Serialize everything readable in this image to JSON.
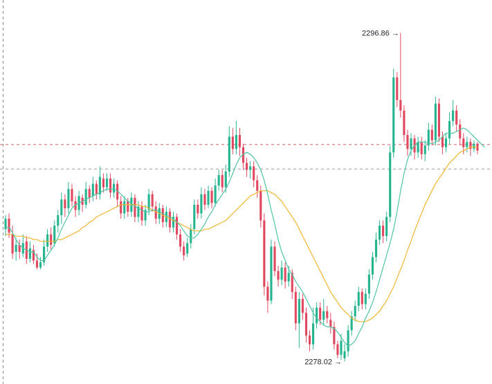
{
  "chart_data": {
    "type": "candlestick",
    "ylim": [
      2277.0,
      2298.5
    ],
    "colors": {
      "up": "#26b48f",
      "down": "#e0485f",
      "ma_fast": "#4fc4a3",
      "ma_slow": "#f2b630",
      "dashed_line": "#d05a6e",
      "dashed_line_gray": "#9a9a9a",
      "axis_dashed": "#8a8a8a"
    },
    "annotations": {
      "high": {
        "text": "2296.86 →",
        "value": 2296.86
      },
      "low": {
        "text": "2278.02 →",
        "value": 2278.02
      }
    },
    "horizontal_lines": [
      {
        "value": 2290.45,
        "color": "dashed_line"
      },
      {
        "value": 2289.05,
        "color": "dashed_line_gray"
      }
    ],
    "candles": [
      {
        "o": 2285.6,
        "c": 2286.2,
        "h": 2286.4,
        "l": 2285.2
      },
      {
        "o": 2286.2,
        "c": 2285.4,
        "h": 2286.5,
        "l": 2285.1
      },
      {
        "o": 2285.3,
        "c": 2284.2,
        "h": 2285.8,
        "l": 2283.9
      },
      {
        "o": 2284.3,
        "c": 2284.7,
        "h": 2285.1,
        "l": 2283.8
      },
      {
        "o": 2284.7,
        "c": 2284.3,
        "h": 2285.0,
        "l": 2283.9
      },
      {
        "o": 2284.2,
        "c": 2284.8,
        "h": 2285.3,
        "l": 2284.0
      },
      {
        "o": 2284.9,
        "c": 2283.9,
        "h": 2285.2,
        "l": 2283.6
      },
      {
        "o": 2283.9,
        "c": 2284.5,
        "h": 2284.9,
        "l": 2283.7
      },
      {
        "o": 2284.4,
        "c": 2283.8,
        "h": 2284.7,
        "l": 2283.6
      },
      {
        "o": 2283.8,
        "c": 2283.4,
        "h": 2284.2,
        "l": 2283.3
      },
      {
        "o": 2283.4,
        "c": 2283.7,
        "h": 2284.0,
        "l": 2283.3
      },
      {
        "o": 2283.7,
        "c": 2284.6,
        "h": 2285.0,
        "l": 2283.5
      },
      {
        "o": 2284.6,
        "c": 2285.3,
        "h": 2285.6,
        "l": 2284.3
      },
      {
        "o": 2285.3,
        "c": 2284.7,
        "h": 2285.7,
        "l": 2284.4
      },
      {
        "o": 2284.8,
        "c": 2285.8,
        "h": 2286.1,
        "l": 2284.6
      },
      {
        "o": 2285.8,
        "c": 2286.4,
        "h": 2286.7,
        "l": 2285.4
      },
      {
        "o": 2286.4,
        "c": 2287.3,
        "h": 2287.7,
        "l": 2285.9
      },
      {
        "o": 2287.3,
        "c": 2286.8,
        "h": 2287.6,
        "l": 2286.3
      },
      {
        "o": 2286.8,
        "c": 2287.9,
        "h": 2288.3,
        "l": 2286.5
      },
      {
        "o": 2287.9,
        "c": 2287.2,
        "h": 2288.2,
        "l": 2286.9
      },
      {
        "o": 2287.2,
        "c": 2286.7,
        "h": 2287.5,
        "l": 2286.3
      },
      {
        "o": 2286.7,
        "c": 2287.5,
        "h": 2287.8,
        "l": 2286.4
      },
      {
        "o": 2287.4,
        "c": 2287.0,
        "h": 2287.6,
        "l": 2286.6
      },
      {
        "o": 2287.0,
        "c": 2287.9,
        "h": 2288.3,
        "l": 2286.8
      },
      {
        "o": 2287.9,
        "c": 2287.4,
        "h": 2288.1,
        "l": 2287.1
      },
      {
        "o": 2287.5,
        "c": 2288.2,
        "h": 2288.6,
        "l": 2287.2
      },
      {
        "o": 2288.2,
        "c": 2287.6,
        "h": 2288.4,
        "l": 2287.3
      },
      {
        "o": 2287.6,
        "c": 2288.6,
        "h": 2289.2,
        "l": 2287.3
      },
      {
        "o": 2288.5,
        "c": 2288.0,
        "h": 2288.8,
        "l": 2287.7
      },
      {
        "o": 2288.0,
        "c": 2288.5,
        "h": 2288.8,
        "l": 2287.8
      },
      {
        "o": 2288.5,
        "c": 2287.7,
        "h": 2288.8,
        "l": 2287.4
      },
      {
        "o": 2287.7,
        "c": 2288.2,
        "h": 2288.5,
        "l": 2287.4
      },
      {
        "o": 2288.2,
        "c": 2287.3,
        "h": 2288.4,
        "l": 2286.9
      },
      {
        "o": 2287.2,
        "c": 2286.5,
        "h": 2287.5,
        "l": 2286.2
      },
      {
        "o": 2286.5,
        "c": 2287.2,
        "h": 2287.5,
        "l": 2286.2
      },
      {
        "o": 2287.2,
        "c": 2286.6,
        "h": 2287.4,
        "l": 2286.3
      },
      {
        "o": 2286.6,
        "c": 2287.4,
        "h": 2287.7,
        "l": 2286.3
      },
      {
        "o": 2287.4,
        "c": 2286.3,
        "h": 2287.6,
        "l": 2286.0
      },
      {
        "o": 2286.3,
        "c": 2286.9,
        "h": 2287.2,
        "l": 2286.0
      },
      {
        "o": 2286.9,
        "c": 2286.1,
        "h": 2287.2,
        "l": 2285.8
      },
      {
        "o": 2286.1,
        "c": 2286.7,
        "h": 2287.0,
        "l": 2285.8
      },
      {
        "o": 2286.7,
        "c": 2287.6,
        "h": 2287.9,
        "l": 2286.4
      },
      {
        "o": 2287.6,
        "c": 2286.9,
        "h": 2287.8,
        "l": 2286.6
      },
      {
        "o": 2286.9,
        "c": 2286.2,
        "h": 2287.2,
        "l": 2285.9
      },
      {
        "o": 2286.2,
        "c": 2286.8,
        "h": 2287.1,
        "l": 2285.9
      },
      {
        "o": 2286.8,
        "c": 2286.0,
        "h": 2287.0,
        "l": 2285.7
      },
      {
        "o": 2286.0,
        "c": 2286.6,
        "h": 2286.9,
        "l": 2285.7
      },
      {
        "o": 2286.6,
        "c": 2285.7,
        "h": 2286.8,
        "l": 2285.4
      },
      {
        "o": 2285.7,
        "c": 2286.3,
        "h": 2286.6,
        "l": 2285.4
      },
      {
        "o": 2286.3,
        "c": 2285.3,
        "h": 2286.5,
        "l": 2285.0
      },
      {
        "o": 2285.3,
        "c": 2284.6,
        "h": 2285.6,
        "l": 2284.3
      },
      {
        "o": 2284.6,
        "c": 2284.1,
        "h": 2284.9,
        "l": 2283.8
      },
      {
        "o": 2284.2,
        "c": 2284.8,
        "h": 2285.1,
        "l": 2284.0
      },
      {
        "o": 2284.8,
        "c": 2285.6,
        "h": 2285.9,
        "l": 2284.5
      },
      {
        "o": 2285.6,
        "c": 2287.0,
        "h": 2287.3,
        "l": 2285.3
      },
      {
        "o": 2287.0,
        "c": 2286.5,
        "h": 2287.3,
        "l": 2286.2
      },
      {
        "o": 2286.5,
        "c": 2287.6,
        "h": 2288.0,
        "l": 2286.2
      },
      {
        "o": 2287.6,
        "c": 2287.0,
        "h": 2287.9,
        "l": 2286.7
      },
      {
        "o": 2287.0,
        "c": 2287.8,
        "h": 2288.1,
        "l": 2286.8
      },
      {
        "o": 2287.8,
        "c": 2287.1,
        "h": 2288.0,
        "l": 2286.8
      },
      {
        "o": 2287.1,
        "c": 2288.1,
        "h": 2288.5,
        "l": 2286.9
      },
      {
        "o": 2288.1,
        "c": 2288.7,
        "h": 2289.0,
        "l": 2287.8
      },
      {
        "o": 2288.7,
        "c": 2288.0,
        "h": 2289.0,
        "l": 2287.7
      },
      {
        "o": 2288.0,
        "c": 2288.9,
        "h": 2289.3,
        "l": 2287.7
      },
      {
        "o": 2288.9,
        "c": 2290.9,
        "h": 2291.5,
        "l": 2288.6
      },
      {
        "o": 2290.9,
        "c": 2290.2,
        "h": 2291.4,
        "l": 2289.9
      },
      {
        "o": 2290.2,
        "c": 2291.0,
        "h": 2291.8,
        "l": 2289.9
      },
      {
        "o": 2291.0,
        "c": 2290.3,
        "h": 2291.4,
        "l": 2289.8
      },
      {
        "o": 2290.3,
        "c": 2289.4,
        "h": 2290.5,
        "l": 2289.0
      },
      {
        "o": 2289.4,
        "c": 2289.0,
        "h": 2289.7,
        "l": 2288.6
      },
      {
        "o": 2289.0,
        "c": 2289.2,
        "h": 2289.5,
        "l": 2288.5
      },
      {
        "o": 2289.2,
        "c": 2288.4,
        "h": 2289.5,
        "l": 2288.0
      },
      {
        "o": 2288.4,
        "c": 2287.8,
        "h": 2288.7,
        "l": 2287.4
      },
      {
        "o": 2287.8,
        "c": 2286.1,
        "h": 2288.1,
        "l": 2285.7
      },
      {
        "o": 2286.1,
        "c": 2282.3,
        "h": 2286.5,
        "l": 2281.8
      },
      {
        "o": 2282.3,
        "c": 2281.5,
        "h": 2282.6,
        "l": 2280.8
      },
      {
        "o": 2281.5,
        "c": 2284.6,
        "h": 2285.0,
        "l": 2281.3
      },
      {
        "o": 2284.6,
        "c": 2283.2,
        "h": 2284.9,
        "l": 2282.9
      },
      {
        "o": 2283.2,
        "c": 2282.7,
        "h": 2283.5,
        "l": 2282.3
      },
      {
        "o": 2282.7,
        "c": 2283.4,
        "h": 2283.8,
        "l": 2282.4
      },
      {
        "o": 2283.4,
        "c": 2282.6,
        "h": 2283.7,
        "l": 2282.2
      },
      {
        "o": 2282.6,
        "c": 2283.1,
        "h": 2283.5,
        "l": 2282.3
      },
      {
        "o": 2283.1,
        "c": 2282.0,
        "h": 2283.3,
        "l": 2281.6
      },
      {
        "o": 2282.0,
        "c": 2280.2,
        "h": 2282.3,
        "l": 2279.8
      },
      {
        "o": 2280.2,
        "c": 2281.6,
        "h": 2282.0,
        "l": 2278.8
      },
      {
        "o": 2281.6,
        "c": 2280.8,
        "h": 2281.9,
        "l": 2280.4
      },
      {
        "o": 2280.8,
        "c": 2279.5,
        "h": 2281.1,
        "l": 2279.1
      },
      {
        "o": 2279.5,
        "c": 2279.0,
        "h": 2279.8,
        "l": 2278.6
      },
      {
        "o": 2279.0,
        "c": 2280.2,
        "h": 2281.1,
        "l": 2278.7
      },
      {
        "o": 2280.2,
        "c": 2281.1,
        "h": 2281.4,
        "l": 2279.9
      },
      {
        "o": 2281.1,
        "c": 2280.4,
        "h": 2281.4,
        "l": 2280.1
      },
      {
        "o": 2280.4,
        "c": 2280.9,
        "h": 2281.6,
        "l": 2280.1
      },
      {
        "o": 2280.9,
        "c": 2280.5,
        "h": 2281.2,
        "l": 2280.2
      },
      {
        "o": 2280.4,
        "c": 2280.0,
        "h": 2280.8,
        "l": 2279.6
      },
      {
        "o": 2280.0,
        "c": 2279.0,
        "h": 2280.3,
        "l": 2278.7
      },
      {
        "o": 2279.0,
        "c": 2278.4,
        "h": 2279.2,
        "l": 2278.2
      },
      {
        "o": 2278.4,
        "c": 2279.2,
        "h": 2279.6,
        "l": 2278.1
      },
      {
        "o": 2278.2,
        "c": 2278.6,
        "h": 2279.0,
        "l": 2278.02
      },
      {
        "o": 2278.6,
        "c": 2279.8,
        "h": 2280.1,
        "l": 2278.3
      },
      {
        "o": 2279.8,
        "c": 2280.6,
        "h": 2280.9,
        "l": 2279.5
      },
      {
        "o": 2280.6,
        "c": 2281.2,
        "h": 2281.5,
        "l": 2280.3
      },
      {
        "o": 2281.2,
        "c": 2282.0,
        "h": 2282.3,
        "l": 2280.9
      },
      {
        "o": 2282.0,
        "c": 2281.3,
        "h": 2282.2,
        "l": 2281.0
      },
      {
        "o": 2281.3,
        "c": 2281.9,
        "h": 2282.2,
        "l": 2281.0
      },
      {
        "o": 2281.9,
        "c": 2283.0,
        "h": 2283.3,
        "l": 2281.6
      },
      {
        "o": 2283.0,
        "c": 2284.0,
        "h": 2284.3,
        "l": 2282.7
      },
      {
        "o": 2284.0,
        "c": 2285.0,
        "h": 2285.4,
        "l": 2283.7
      },
      {
        "o": 2285.0,
        "c": 2285.8,
        "h": 2286.1,
        "l": 2284.7
      },
      {
        "o": 2285.8,
        "c": 2285.2,
        "h": 2286.1,
        "l": 2284.8
      },
      {
        "o": 2285.2,
        "c": 2286.3,
        "h": 2286.6,
        "l": 2284.9
      },
      {
        "o": 2286.3,
        "c": 2290.0,
        "h": 2290.4,
        "l": 2286.0
      },
      {
        "o": 2290.0,
        "c": 2294.3,
        "h": 2294.8,
        "l": 2289.7
      },
      {
        "o": 2294.3,
        "c": 2293.0,
        "h": 2294.6,
        "l": 2292.6
      },
      {
        "o": 2293.0,
        "c": 2292.4,
        "h": 2296.86,
        "l": 2292.0
      },
      {
        "o": 2292.4,
        "c": 2291.0,
        "h": 2292.7,
        "l": 2290.6
      },
      {
        "o": 2291.0,
        "c": 2290.2,
        "h": 2291.3,
        "l": 2289.8
      },
      {
        "o": 2290.2,
        "c": 2290.8,
        "h": 2291.1,
        "l": 2289.8
      },
      {
        "o": 2290.8,
        "c": 2290.0,
        "h": 2291.0,
        "l": 2289.6
      },
      {
        "o": 2290.0,
        "c": 2290.6,
        "h": 2290.9,
        "l": 2289.7
      },
      {
        "o": 2290.6,
        "c": 2289.9,
        "h": 2290.9,
        "l": 2289.6
      },
      {
        "o": 2289.9,
        "c": 2290.4,
        "h": 2290.7,
        "l": 2289.5
      },
      {
        "o": 2290.4,
        "c": 2291.3,
        "h": 2291.7,
        "l": 2290.1
      },
      {
        "o": 2291.3,
        "c": 2290.7,
        "h": 2291.6,
        "l": 2290.4
      },
      {
        "o": 2290.7,
        "c": 2292.8,
        "h": 2293.2,
        "l": 2290.4
      },
      {
        "o": 2292.8,
        "c": 2290.9,
        "h": 2293.1,
        "l": 2290.6
      },
      {
        "o": 2290.9,
        "c": 2290.3,
        "h": 2291.2,
        "l": 2289.9
      },
      {
        "o": 2290.3,
        "c": 2290.8,
        "h": 2291.1,
        "l": 2290.0
      },
      {
        "o": 2290.8,
        "c": 2291.8,
        "h": 2292.3,
        "l": 2290.5
      },
      {
        "o": 2291.8,
        "c": 2292.4,
        "h": 2293.0,
        "l": 2291.5
      },
      {
        "o": 2292.4,
        "c": 2291.6,
        "h": 2292.7,
        "l": 2291.2
      },
      {
        "o": 2291.6,
        "c": 2290.8,
        "h": 2291.9,
        "l": 2290.4
      },
      {
        "o": 2290.8,
        "c": 2290.3,
        "h": 2291.1,
        "l": 2289.9
      },
      {
        "o": 2290.3,
        "c": 2290.6,
        "h": 2290.9,
        "l": 2290.0
      },
      {
        "o": 2290.6,
        "c": 2290.2,
        "h": 2290.8,
        "l": 2289.8
      },
      {
        "o": 2290.2,
        "c": 2290.5,
        "h": 2290.7,
        "l": 2290.0
      },
      {
        "o": 2290.5,
        "c": 2290.1,
        "h": 2290.6,
        "l": 2289.9
      }
    ],
    "ma_fast_values": [
      2285.7,
      2285.7,
      2285.4,
      2285.0,
      2284.7,
      2284.5,
      2284.4,
      2284.3,
      2284.3,
      2284.0,
      2283.8,
      2283.8,
      2284.1,
      2284.4,
      2284.7,
      2285.1,
      2285.6,
      2286.0,
      2286.4,
      2286.8,
      2287.0,
      2287.1,
      2287.2,
      2287.3,
      2287.4,
      2287.5,
      2287.6,
      2287.7,
      2287.8,
      2287.9,
      2287.9,
      2287.9,
      2287.8,
      2287.6,
      2287.4,
      2287.2,
      2287.1,
      2286.9,
      2286.8,
      2286.7,
      2286.6,
      2286.6,
      2286.7,
      2286.7,
      2286.6,
      2286.5,
      2286.4,
      2286.3,
      2286.2,
      2286.0,
      2285.8,
      2285.5,
      2285.2,
      2285.1,
      2285.1,
      2285.3,
      2285.6,
      2285.9,
      2286.3,
      2286.6,
      2287.0,
      2287.3,
      2287.6,
      2287.9,
      2288.3,
      2288.8,
      2289.3,
      2289.7,
      2289.9,
      2290.0,
      2289.9,
      2289.7,
      2289.4,
      2289.0,
      2288.4,
      2287.6,
      2286.7,
      2285.9,
      2285.0,
      2284.3,
      2283.8,
      2283.3,
      2283.0,
      2282.6,
      2282.3,
      2282.0,
      2281.6,
      2281.2,
      2280.8,
      2280.5,
      2280.3,
      2280.1,
      2280.0,
      2280.0,
      2279.9,
      2279.7,
      2279.4,
      2279.1,
      2278.9,
      2279.0,
      2279.2,
      2279.6,
      2280.0,
      2280.5,
      2280.9,
      2281.4,
      2282.0,
      2282.7,
      2283.4,
      2284.1,
      2284.8,
      2285.6,
      2286.6,
      2287.8,
      2288.8,
      2289.6,
      2290.1,
      2290.4,
      2290.6,
      2290.6,
      2290.6,
      2290.5,
      2290.5,
      2290.6,
      2290.7,
      2290.9,
      2291.1,
      2291.1,
      2291.1,
      2291.2,
      2291.3,
      2291.4,
      2291.3,
      2291.1,
      2290.9,
      2290.7,
      2290.5,
      2290.3
    ],
    "ma_slow_values": [
      2285.3,
      2285.3,
      2285.3,
      2285.2,
      2285.2,
      2285.2,
      2285.1,
      2285.1,
      2285.0,
      2285.0,
      2284.9,
      2284.9,
      2284.9,
      2284.9,
      2284.9,
      2285.0,
      2285.0,
      2285.1,
      2285.2,
      2285.3,
      2285.4,
      2285.5,
      2285.7,
      2285.8,
      2286.0,
      2286.1,
      2286.3,
      2286.4,
      2286.5,
      2286.6,
      2286.7,
      2286.8,
      2286.9,
      2287.0,
      2287.0,
      2287.0,
      2287.0,
      2287.0,
      2287.0,
      2286.9,
      2286.9,
      2286.8,
      2286.7,
      2286.6,
      2286.5,
      2286.4,
      2286.3,
      2286.2,
      2286.1,
      2286.0,
      2285.9,
      2285.8,
      2285.7,
      2285.6,
      2285.5,
      2285.5,
      2285.5,
      2285.6,
      2285.6,
      2285.7,
      2285.8,
      2285.9,
      2286.0,
      2286.1,
      2286.3,
      2286.5,
      2286.7,
      2286.9,
      2287.1,
      2287.3,
      2287.5,
      2287.6,
      2287.7,
      2287.8,
      2287.8,
      2287.8,
      2287.7,
      2287.6,
      2287.4,
      2287.2,
      2286.9,
      2286.6,
      2286.3,
      2286.0,
      2285.6,
      2285.2,
      2284.8,
      2284.4,
      2284.0,
      2283.6,
      2283.2,
      2282.8,
      2282.4,
      2282.0,
      2281.7,
      2281.4,
      2281.1,
      2280.9,
      2280.7,
      2280.5,
      2280.4,
      2280.3,
      2280.3,
      2280.3,
      2280.4,
      2280.5,
      2280.7,
      2280.9,
      2281.2,
      2281.5,
      2281.9,
      2282.3,
      2282.8,
      2283.3,
      2283.8,
      2284.4,
      2284.9,
      2285.5,
      2286.0,
      2286.5,
      2287.0,
      2287.4,
      2287.8,
      2288.2,
      2288.5,
      2288.8,
      2289.1,
      2289.4,
      2289.6,
      2289.8,
      2290.0,
      2290.1,
      2290.2,
      2290.3,
      2290.3,
      2290.3
    ]
  }
}
